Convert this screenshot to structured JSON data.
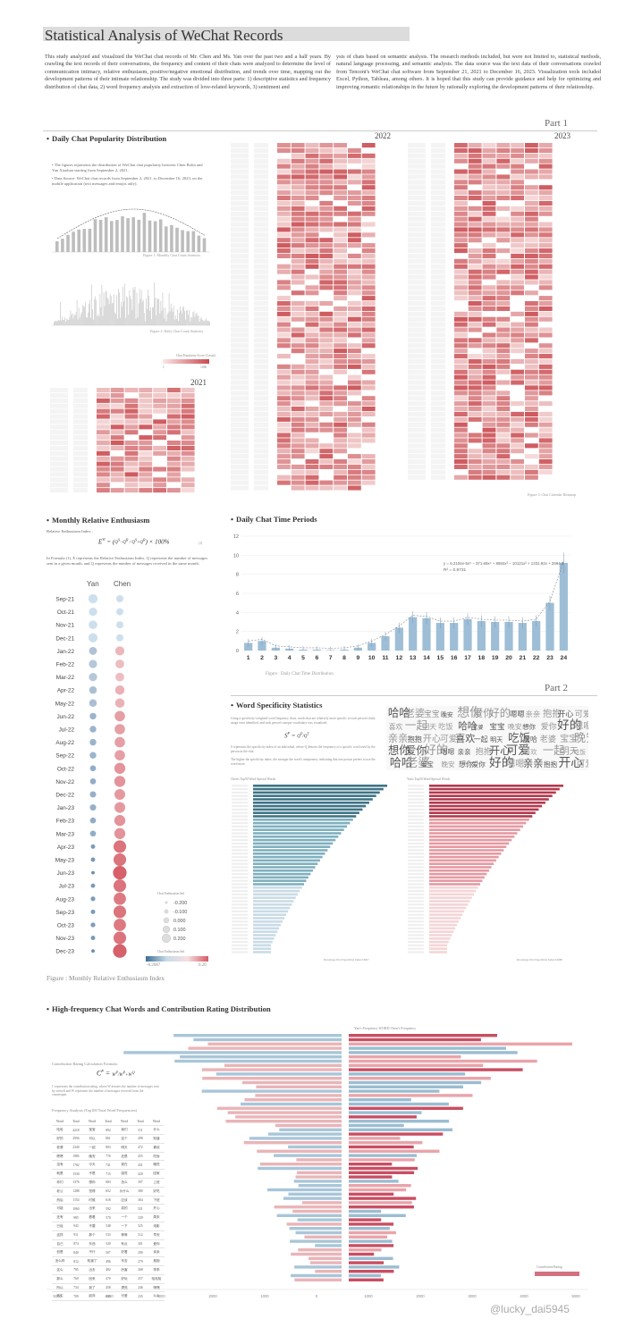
{
  "title": "Statistical Analysis of WeChat Records",
  "intro_left": "This study analyzed and visualized the WeChat chat records of Mr. Chen and Ms. Yan over the past two and a half years. By crawling the text records of their conversations, the frequency and content of their chats were analyzed to determine the level of communication intimacy, relative enthusiasm, positive/negative emotional distribution, and trends over time, mapping out the development patterns of their intimate relationship. The study was divided into three parts: 1) descriptive statistics and frequency distribution of chat data, 2) word frequency analysis and extraction of love-related keywords, 3) sentiment and",
  "intro_right": "ysis of chats based on semantic analysis. The research methods included, but were not limited to, statistical methods, natural language processing, and semantic analysis. The data source was the text data of their conversations crawled from Tencent's WeChat chat software from September 21, 2021 to December 16, 2023. Visualization tools included Excel, Python, Tableau, among others. It is hoped that this study can provide guidance and help for optimizing and improving romantic relationships in the future by rationally exploring the development patterns of their relationship.",
  "parts": {
    "part1": "Part 1",
    "part2": "Part 2"
  },
  "daily_popularity": {
    "title": "Daily Chat Popularity Distribution",
    "bullet1": "The figures represents the distribution of WeChat chat popularity between Chen Bolin and Yan Xiaohan starting from September 2, 2021.",
    "bullet2": "Data Source: WeChat chat records from September 2, 2021, to December 16, 2023, on the mobile application (text messages and emojis only).",
    "fig1_caption": "Figure 1: Monthly Chat Count Statistics",
    "fig2_caption": "Figure 2: Daily Chat Count Statistics",
    "legend_title": "Chat Popularity Score (Count)",
    "legend_min": "1",
    "legend_max": "1466",
    "year_2021": "2021",
    "year_2022": "2022",
    "year_2023": "2023",
    "calendar_caption": "Figure 3: Chat Calendar Heatmap"
  },
  "monthly_enthusiasm": {
    "title": "Monthly Relative Enthusiasm",
    "index_label": "Relative Enthusiasm Index :",
    "formula_number": "(1)",
    "formula_note": "In Formula (1), E represents the Relative Enthusiasm Index, Q represents the number of messages sent in a given month, and Q represents the number of messages received in the same month.",
    "col_yan": "Yan",
    "col_chen": "Chen",
    "legend1_title": "Chat Enthusiasm Ind",
    "legend1_values": [
      "-0.200",
      "-0.100",
      "0.000",
      "0.100",
      "0.200"
    ],
    "legend2_title": "Chat Enthusiasm Ind",
    "legend2_min": "-0.2087",
    "legend2_max": "0.20",
    "caption": "Figure : Monthly Relative Enthusiasm Index"
  },
  "word_specificity": {
    "title": "Word Specificity Statistics",
    "desc": "Using a specificity-weighted word frequency chart, words that are relatively more specific to each person's daily usage were identified, and each person's unique vocabulary was visualized.",
    "note1": "S represents the specificity index of an individual, where Q denotes the frequency of a specific word used by the person in the chat.",
    "note2": "The higher the specificity index, the stronger the word's uniqueness, indicating that one person prefers to use the word more.",
    "chen_title": "Chen's Top50 Word Special Words",
    "yan_title": "Yan's Top50 Word Special Words",
    "legend_chen": "Percentage Word Specificity Index 0.0627",
    "legend_yan": "Percentage Word Specificity Index 0.0688"
  },
  "high_freq": {
    "title": "High-frequency Chat Words and Contribution Rating Distribution",
    "axis_label": "Yan's Frequency  WORD  Chen's Frequency",
    "contrib_label": "Contribution Rating Calculation Formula:",
    "contrib_note": "C represents the contribution rating, where W denotes the number of messages sent by oneself and W represents the number of messages received from the counterpart.",
    "table_title": "Frequency Analysis (Top100 Total Word Frequencies)",
    "table_headers": [
      "Word",
      "Total",
      "Word",
      "Total",
      "Word",
      "Total",
      "Word"
    ],
    "table_rows": [
      [
        "哈哈",
        "4218",
        "宝宝",
        "892",
        "我们",
        "511",
        "什么"
      ],
      [
        "好的",
        "2956",
        "可以",
        "861",
        "这个",
        "498",
        "知道"
      ],
      [
        "老婆",
        "2340",
        "一起",
        "803",
        "明天",
        "472",
        "喜欢"
      ],
      [
        "嗯嗯",
        "1985",
        "晚安",
        "776",
        "还是",
        "455",
        "吃饭"
      ],
      [
        "没有",
        "1702",
        "今天",
        "741",
        "现在",
        "431",
        "睡觉"
      ],
      [
        "就是",
        "1530",
        "不是",
        "715",
        "感觉",
        "420",
        "回家"
      ],
      [
        "你们",
        "1376",
        "想你",
        "683",
        "怎么",
        "397",
        "上班"
      ],
      [
        "老公",
        "1288",
        "觉得",
        "652",
        "为什么",
        "380",
        "好吃"
      ],
      [
        "然后",
        "1154",
        "时候",
        "618",
        "应该",
        "364",
        "下班"
      ],
      [
        "可能",
        "1060",
        "出来",
        "592",
        "真的",
        "351",
        "开心"
      ],
      [
        "还有",
        "985",
        "看看",
        "570",
        "一个",
        "339",
        "周末"
      ],
      [
        "已经",
        "943",
        "不要",
        "548",
        "一下",
        "325",
        "电影"
      ],
      [
        "这样",
        "911",
        "那个",
        "533",
        "等等",
        "312",
        "早安"
      ],
      [
        "自己",
        "874",
        "东西",
        "520",
        "有点",
        "301",
        "爱你"
      ],
      [
        "但是",
        "840",
        "不行",
        "507",
        "好看",
        "290",
        "亲亲"
      ],
      [
        "怎么样",
        "812",
        "知道了",
        "496",
        "辛苦",
        "279",
        "抱抱"
      ],
      [
        "这么",
        "785",
        "出去",
        "482",
        "厉害",
        "268",
        "乖乖"
      ],
      [
        "那么",
        "760",
        "回来",
        "470",
        "好玩",
        "257",
        "哈哈哈"
      ],
      [
        "所以",
        "734",
        "到了",
        "458",
        "漂亮",
        "246",
        "嘿嘿"
      ],
      [
        "其实",
        "709",
        "起床",
        "445",
        "可爱",
        "235",
        "么么"
      ]
    ],
    "x_ticks": [
      "5000",
      "4000",
      "3000",
      "2000",
      "1000",
      "0",
      "1000",
      "2000",
      "3000",
      "4000",
      "5000"
    ],
    "legend": "Contribution Rating"
  },
  "watermark": "@lucky_dai5945",
  "chart_data": [
    {
      "type": "bar",
      "title": "Daily Chat Time Periods",
      "caption": "Figure : Daily Chat Time Distribution",
      "categories": [
        "1",
        "2",
        "3",
        "4",
        "5",
        "6",
        "7",
        "8",
        "9",
        "10",
        "11",
        "12",
        "13",
        "14",
        "15",
        "16",
        "17",
        "18",
        "19",
        "20",
        "21",
        "22",
        "23",
        "24"
      ],
      "values": [
        0.8,
        1.0,
        0.3,
        0.2,
        0.1,
        0.1,
        0.05,
        0.1,
        0.3,
        0.8,
        1.5,
        2.4,
        3.5,
        3.4,
        2.9,
        2.9,
        3.3,
        3.1,
        3.0,
        3.0,
        2.9,
        3.1,
        5.0,
        9.2
      ],
      "ylim": [
        0,
        12
      ],
      "yticks": [
        "0",
        "2",
        "4",
        "6",
        "8",
        "10",
        "12"
      ],
      "equation": "y = 6.2104e-5x⁵ − 371.69x⁴ + 8592x³ − 10121x² + 1331.92x + 2594.9",
      "r2": "R² = 0.9731"
    }
  ]
}
